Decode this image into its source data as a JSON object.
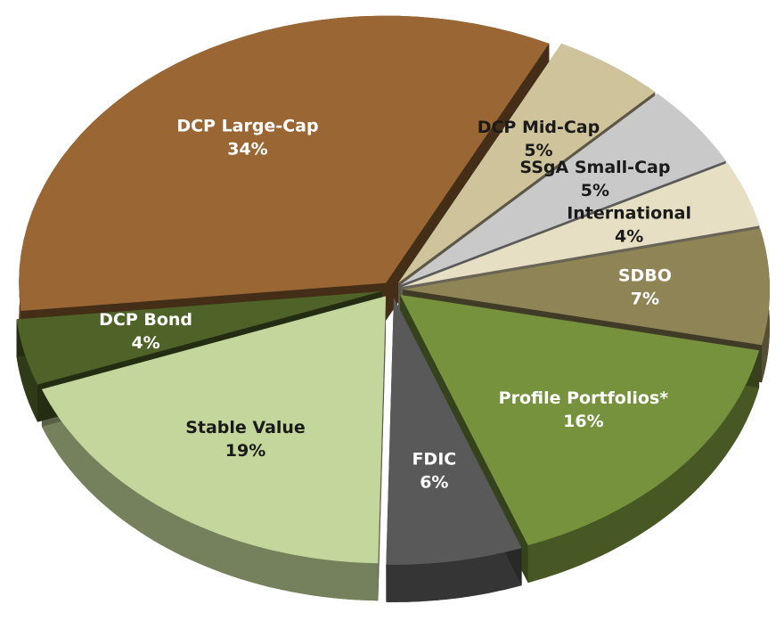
{
  "chart_data": {
    "type": "pie",
    "categories": [
      "DCP Large-Cap",
      "DCP Mid-Cap",
      "SSgA Small-Cap",
      "International",
      "SDBO",
      "Profile Portfolios*",
      "FDIC",
      "Stable Value",
      "DCP Bond"
    ],
    "values": [
      34,
      5,
      5,
      4,
      7,
      16,
      6,
      19,
      4
    ],
    "value_labels": [
      "34%",
      "5%",
      "5%",
      "4%",
      "7%",
      "16%",
      "6%",
      "19%",
      "4%"
    ],
    "colors": [
      "#9a6633",
      "#cfc39b",
      "#c9c9c9",
      "#e6dfc3",
      "#8f8456",
      "#76923c",
      "#595959",
      "#c3d69b",
      "#4f6228"
    ]
  }
}
